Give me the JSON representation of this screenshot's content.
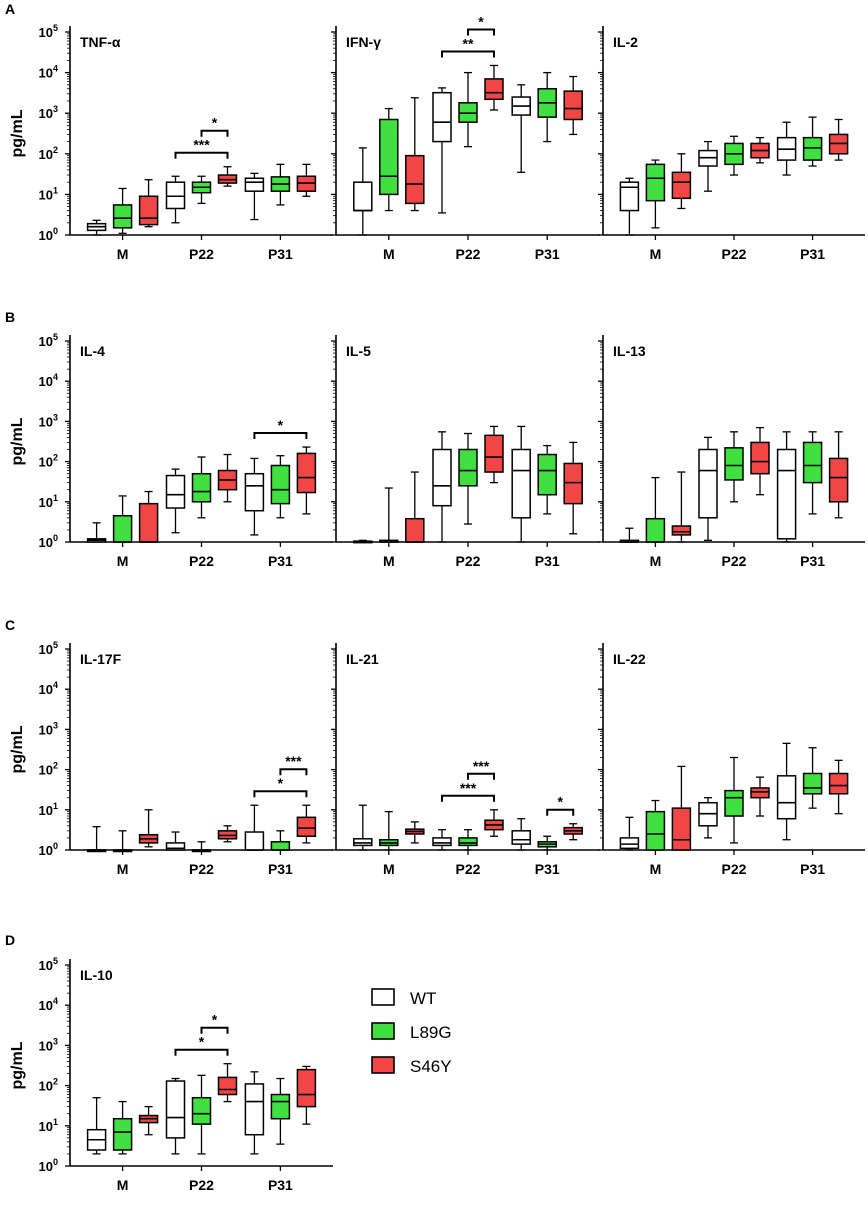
{
  "colors": {
    "WT": "#ffffff",
    "L89G": "#3fe03f",
    "S46Y": "#f04646",
    "axis": "#000000"
  },
  "legend": [
    {
      "key": "WT",
      "label": "WT"
    },
    {
      "key": "L89G",
      "label": "L89G"
    },
    {
      "key": "S46Y",
      "label": "S46Y"
    }
  ],
  "y_axis": {
    "label": "pg/mL",
    "ticks": [
      {
        "value": 1,
        "base": "10",
        "exp": "0"
      },
      {
        "value": 10,
        "base": "10",
        "exp": "1"
      },
      {
        "value": 100,
        "base": "10",
        "exp": "2"
      },
      {
        "value": 1000,
        "base": "10",
        "exp": "3"
      },
      {
        "value": 10000,
        "base": "10",
        "exp": "4"
      },
      {
        "value": 100000,
        "base": "10",
        "exp": "5"
      }
    ]
  },
  "chart_data": [
    {
      "type": "box",
      "panel": "A",
      "title": "TNF-α",
      "yscale": "log",
      "ylim": [
        1,
        100000
      ],
      "ylabel": "pg/mL",
      "categories": [
        "M",
        "P22",
        "P31"
      ],
      "series_names": [
        "WT",
        "L89G",
        "S46Y"
      ],
      "boxes": [
        [
          {
            "min": 1,
            "q1": 1.3,
            "median": 1.6,
            "q3": 1.9,
            "max": 2.3
          },
          {
            "min": 1.1,
            "q1": 1.5,
            "median": 2.6,
            "q3": 5.5,
            "max": 14
          },
          {
            "min": 1.6,
            "q1": 1.8,
            "median": 2.6,
            "q3": 9,
            "max": 23
          }
        ],
        [
          {
            "min": 2,
            "q1": 4.5,
            "median": 9,
            "q3": 20,
            "max": 28
          },
          {
            "min": 6,
            "q1": 11,
            "median": 15,
            "q3": 20,
            "max": 28
          },
          {
            "min": 16,
            "q1": 19,
            "median": 23,
            "q3": 30,
            "max": 48
          }
        ],
        [
          {
            "min": 2.4,
            "q1": 12,
            "median": 20,
            "q3": 25,
            "max": 33
          },
          {
            "min": 5.5,
            "q1": 12,
            "median": 18,
            "q3": 27,
            "max": 55
          },
          {
            "min": 9,
            "q1": 12,
            "median": 19,
            "q3": 28,
            "max": 55
          }
        ]
      ],
      "significance": [
        {
          "category": "P22",
          "from": "WT",
          "to": "S46Y",
          "label": "***"
        },
        {
          "category": "P22",
          "from": "L89G",
          "to": "S46Y",
          "label": "*"
        }
      ]
    },
    {
      "type": "box",
      "panel": "A",
      "title": "IFN-γ",
      "yscale": "log",
      "ylim": [
        1,
        100000
      ],
      "categories": [
        "M",
        "P22",
        "P31"
      ],
      "series_names": [
        "WT",
        "L89G",
        "S46Y"
      ],
      "boxes": [
        [
          {
            "min": 1,
            "q1": 4,
            "median": 4,
            "q3": 20,
            "max": 140
          },
          {
            "min": 4,
            "q1": 10,
            "median": 28,
            "q3": 700,
            "max": 1300
          },
          {
            "min": 4,
            "q1": 6,
            "median": 18,
            "q3": 90,
            "max": 2400
          }
        ],
        [
          {
            "min": 3.5,
            "q1": 200,
            "median": 600,
            "q3": 3200,
            "max": 4200
          },
          {
            "min": 150,
            "q1": 600,
            "median": 1000,
            "q3": 1800,
            "max": 10000
          },
          {
            "min": 1200,
            "q1": 2200,
            "median": 3200,
            "q3": 7000,
            "max": 15000
          }
        ],
        [
          {
            "min": 35,
            "q1": 900,
            "median": 1500,
            "q3": 2500,
            "max": 5000
          },
          {
            "min": 200,
            "q1": 800,
            "median": 1800,
            "q3": 4000,
            "max": 10000
          },
          {
            "min": 300,
            "q1": 700,
            "median": 1300,
            "q3": 3500,
            "max": 8000
          }
        ]
      ],
      "significance": [
        {
          "category": "P22",
          "from": "WT",
          "to": "S46Y",
          "label": "**"
        },
        {
          "category": "P22",
          "from": "L89G",
          "to": "S46Y",
          "label": "*"
        }
      ]
    },
    {
      "type": "box",
      "panel": "A",
      "title": "IL-2",
      "yscale": "log",
      "ylim": [
        1,
        100000
      ],
      "categories": [
        "M",
        "P22",
        "P31"
      ],
      "series_names": [
        "WT",
        "L89G",
        "S46Y"
      ],
      "boxes": [
        [
          {
            "min": 1,
            "q1": 4,
            "median": 15,
            "q3": 20,
            "max": 25
          },
          {
            "min": 1.5,
            "q1": 7,
            "median": 25,
            "q3": 55,
            "max": 70
          },
          {
            "min": 4.5,
            "q1": 8,
            "median": 20,
            "q3": 35,
            "max": 100
          }
        ],
        [
          {
            "min": 12,
            "q1": 50,
            "median": 80,
            "q3": 120,
            "max": 200
          },
          {
            "min": 30,
            "q1": 55,
            "median": 100,
            "q3": 180,
            "max": 270
          },
          {
            "min": 60,
            "q1": 80,
            "median": 120,
            "q3": 180,
            "max": 250
          }
        ],
        [
          {
            "min": 30,
            "q1": 70,
            "median": 130,
            "q3": 250,
            "max": 600
          },
          {
            "min": 50,
            "q1": 70,
            "median": 140,
            "q3": 250,
            "max": 800
          },
          {
            "min": 70,
            "q1": 100,
            "median": 180,
            "q3": 300,
            "max": 700
          }
        ]
      ],
      "significance": []
    },
    {
      "type": "box",
      "panel": "B",
      "title": "IL-4",
      "yscale": "log",
      "ylim": [
        1,
        100000
      ],
      "ylabel": "pg/mL",
      "categories": [
        "M",
        "P22",
        "P31"
      ],
      "series_names": [
        "WT",
        "L89G",
        "S46Y"
      ],
      "boxes": [
        [
          {
            "min": 1,
            "q1": 1,
            "median": 1.1,
            "q3": 1.2,
            "max": 3
          },
          {
            "min": 1,
            "q1": 1,
            "median": 1,
            "q3": 4.5,
            "max": 14
          },
          {
            "min": 1,
            "q1": 1,
            "median": 1,
            "q3": 9,
            "max": 18
          }
        ],
        [
          {
            "min": 1.7,
            "q1": 7,
            "median": 15,
            "q3": 45,
            "max": 65
          },
          {
            "min": 4,
            "q1": 10,
            "median": 18,
            "q3": 50,
            "max": 130
          },
          {
            "min": 10,
            "q1": 20,
            "median": 35,
            "q3": 60,
            "max": 150
          }
        ],
        [
          {
            "min": 1.5,
            "q1": 6,
            "median": 25,
            "q3": 50,
            "max": 120
          },
          {
            "min": 4,
            "q1": 9,
            "median": 20,
            "q3": 80,
            "max": 140
          },
          {
            "min": 5,
            "q1": 17,
            "median": 40,
            "q3": 160,
            "max": 230
          }
        ]
      ],
      "significance": [
        {
          "category": "P31",
          "from": "WT",
          "to": "S46Y",
          "label": "*"
        }
      ]
    },
    {
      "type": "box",
      "panel": "B",
      "title": "IL-5",
      "yscale": "log",
      "ylim": [
        1,
        100000
      ],
      "categories": [
        "M",
        "P22",
        "P31"
      ],
      "series_names": [
        "WT",
        "L89G",
        "S46Y"
      ],
      "boxes": [
        [
          {
            "min": 1,
            "q1": 1,
            "median": 1,
            "q3": 1.05,
            "max": 1.1
          },
          {
            "min": 1,
            "q1": 1,
            "median": 1,
            "q3": 1.1,
            "max": 22
          },
          {
            "min": 1,
            "q1": 1,
            "median": 1,
            "q3": 3.8,
            "max": 55
          }
        ],
        [
          {
            "min": 1,
            "q1": 8,
            "median": 25,
            "q3": 200,
            "max": 550
          },
          {
            "min": 2.8,
            "q1": 25,
            "median": 60,
            "q3": 200,
            "max": 500
          },
          {
            "min": 30,
            "q1": 55,
            "median": 130,
            "q3": 450,
            "max": 750
          }
        ],
        [
          {
            "min": 1,
            "q1": 4,
            "median": 60,
            "q3": 200,
            "max": 750
          },
          {
            "min": 5,
            "q1": 15,
            "median": 60,
            "q3": 150,
            "max": 250
          },
          {
            "min": 1.6,
            "q1": 9,
            "median": 30,
            "q3": 90,
            "max": 300
          }
        ]
      ],
      "significance": []
    },
    {
      "type": "box",
      "panel": "B",
      "title": "IL-13",
      "yscale": "log",
      "ylim": [
        1,
        100000
      ],
      "categories": [
        "M",
        "P22",
        "P31"
      ],
      "series_names": [
        "WT",
        "L89G",
        "S46Y"
      ],
      "boxes": [
        [
          {
            "min": 1,
            "q1": 1,
            "median": 1,
            "q3": 1.1,
            "max": 2.2
          },
          {
            "min": 1,
            "q1": 1,
            "median": 1,
            "q3": 3.8,
            "max": 40
          },
          {
            "min": 1,
            "q1": 1.5,
            "median": 1.8,
            "q3": 2.5,
            "max": 55
          }
        ],
        [
          {
            "min": 1.1,
            "q1": 4,
            "median": 60,
            "q3": 200,
            "max": 400
          },
          {
            "min": 10,
            "q1": 35,
            "median": 80,
            "q3": 220,
            "max": 550
          },
          {
            "min": 15,
            "q1": 50,
            "median": 100,
            "q3": 300,
            "max": 700
          }
        ],
        [
          {
            "min": 1,
            "q1": 1.2,
            "median": 60,
            "q3": 200,
            "max": 550
          },
          {
            "min": 5,
            "q1": 30,
            "median": 80,
            "q3": 300,
            "max": 550
          },
          {
            "min": 4,
            "q1": 10,
            "median": 40,
            "q3": 120,
            "max": 550
          }
        ]
      ],
      "significance": []
    },
    {
      "type": "box",
      "panel": "C",
      "title": "IL-17F",
      "yscale": "log",
      "ylim": [
        1,
        100000
      ],
      "ylabel": "pg/mL",
      "categories": [
        "M",
        "P22",
        "P31"
      ],
      "series_names": [
        "WT",
        "L89G",
        "S46Y"
      ],
      "boxes": [
        [
          {
            "min": 1,
            "q1": 1,
            "median": 1,
            "q3": 1,
            "max": 3.8
          },
          {
            "min": 1,
            "q1": 1,
            "median": 1,
            "q3": 1,
            "max": 3
          },
          {
            "min": 1.2,
            "q1": 1.5,
            "median": 1.9,
            "q3": 2.4,
            "max": 10
          }
        ],
        [
          {
            "min": 1,
            "q1": 1,
            "median": 1.1,
            "q3": 1.5,
            "max": 2.8
          },
          {
            "min": 1,
            "q1": 1,
            "median": 1,
            "q3": 1,
            "max": 1.6
          },
          {
            "min": 1.6,
            "q1": 1.9,
            "median": 2.3,
            "q3": 3,
            "max": 4
          }
        ],
        [
          {
            "min": 1,
            "q1": 1,
            "median": 1,
            "q3": 2.8,
            "max": 13
          },
          {
            "min": 1,
            "q1": 1,
            "median": 1,
            "q3": 1.6,
            "max": 3
          },
          {
            "min": 1.5,
            "q1": 2.2,
            "median": 3.5,
            "q3": 6.5,
            "max": 13
          }
        ]
      ],
      "significance": [
        {
          "category": "P31",
          "from": "WT",
          "to": "S46Y",
          "label": "*"
        },
        {
          "category": "P31",
          "from": "L89G",
          "to": "S46Y",
          "label": "***"
        }
      ]
    },
    {
      "type": "box",
      "panel": "C",
      "title": "IL-21",
      "yscale": "log",
      "ylim": [
        1,
        100000
      ],
      "categories": [
        "M",
        "P22",
        "P31"
      ],
      "series_names": [
        "WT",
        "L89G",
        "S46Y"
      ],
      "boxes": [
        [
          {
            "min": 1,
            "q1": 1.3,
            "median": 1.5,
            "q3": 1.9,
            "max": 13
          },
          {
            "min": 1,
            "q1": 1.3,
            "median": 1.5,
            "q3": 1.8,
            "max": 9
          },
          {
            "min": 1.5,
            "q1": 2.5,
            "median": 2.9,
            "q3": 3.3,
            "max": 5
          }
        ],
        [
          {
            "min": 1,
            "q1": 1.3,
            "median": 1.5,
            "q3": 2,
            "max": 3.2
          },
          {
            "min": 1,
            "q1": 1.3,
            "median": 1.5,
            "q3": 2,
            "max": 3.2
          },
          {
            "min": 2.2,
            "q1": 3.2,
            "median": 4.2,
            "q3": 5.5,
            "max": 10
          }
        ],
        [
          {
            "min": 1,
            "q1": 1.4,
            "median": 1.8,
            "q3": 3,
            "max": 6
          },
          {
            "min": 1,
            "q1": 1.2,
            "median": 1.4,
            "q3": 1.6,
            "max": 2.2
          },
          {
            "min": 1.8,
            "q1": 2.5,
            "median": 3,
            "q3": 3.6,
            "max": 4.5
          }
        ]
      ],
      "significance": [
        {
          "category": "P22",
          "from": "WT",
          "to": "S46Y",
          "label": "***"
        },
        {
          "category": "P22",
          "from": "L89G",
          "to": "S46Y",
          "label": "***"
        },
        {
          "category": "P31",
          "from": "L89G",
          "to": "S46Y",
          "label": "*"
        }
      ]
    },
    {
      "type": "box",
      "panel": "C",
      "title": "IL-22",
      "yscale": "log",
      "ylim": [
        1,
        100000
      ],
      "categories": [
        "M",
        "P22",
        "P31"
      ],
      "series_names": [
        "WT",
        "L89G",
        "S46Y"
      ],
      "boxes": [
        [
          {
            "min": 1,
            "q1": 1.1,
            "median": 1.4,
            "q3": 2,
            "max": 6.5
          },
          {
            "min": 1,
            "q1": 1,
            "median": 2.5,
            "q3": 9,
            "max": 17
          },
          {
            "min": 1,
            "q1": 1,
            "median": 1.8,
            "q3": 11,
            "max": 120
          }
        ],
        [
          {
            "min": 2,
            "q1": 4,
            "median": 8,
            "q3": 15,
            "max": 20
          },
          {
            "min": 1.5,
            "q1": 7,
            "median": 20,
            "q3": 30,
            "max": 200
          },
          {
            "min": 7,
            "q1": 20,
            "median": 28,
            "q3": 35,
            "max": 65
          }
        ],
        [
          {
            "min": 1.8,
            "q1": 6,
            "median": 15,
            "q3": 70,
            "max": 450
          },
          {
            "min": 11,
            "q1": 25,
            "median": 35,
            "q3": 80,
            "max": 350
          },
          {
            "min": 8,
            "q1": 25,
            "median": 40,
            "q3": 80,
            "max": 170
          }
        ]
      ],
      "significance": []
    },
    {
      "type": "box",
      "panel": "D",
      "title": "IL-10",
      "yscale": "log",
      "ylim": [
        1,
        100000
      ],
      "ylabel": "pg/mL",
      "categories": [
        "M",
        "P22",
        "P31"
      ],
      "series_names": [
        "WT",
        "L89G",
        "S46Y"
      ],
      "boxes": [
        [
          {
            "min": 2,
            "q1": 2.5,
            "median": 4.5,
            "q3": 8,
            "max": 50
          },
          {
            "min": 2,
            "q1": 2.5,
            "median": 7,
            "q3": 15,
            "max": 40
          },
          {
            "min": 6,
            "q1": 12,
            "median": 15,
            "q3": 18,
            "max": 30
          }
        ],
        [
          {
            "min": 2,
            "q1": 5,
            "median": 16,
            "q3": 130,
            "max": 150
          },
          {
            "min": 2,
            "q1": 11,
            "median": 20,
            "q3": 50,
            "max": 180
          },
          {
            "min": 40,
            "q1": 60,
            "median": 80,
            "q3": 160,
            "max": 350
          }
        ],
        [
          {
            "min": 2,
            "q1": 6,
            "median": 40,
            "q3": 110,
            "max": 220
          },
          {
            "min": 3.5,
            "q1": 15,
            "median": 40,
            "q3": 60,
            "max": 150
          },
          {
            "min": 11,
            "q1": 30,
            "median": 60,
            "q3": 250,
            "max": 300
          }
        ]
      ],
      "significance": [
        {
          "category": "P22",
          "from": "WT",
          "to": "S46Y",
          "label": "*"
        },
        {
          "category": "P22",
          "from": "L89G",
          "to": "S46Y",
          "label": "*"
        }
      ]
    }
  ]
}
